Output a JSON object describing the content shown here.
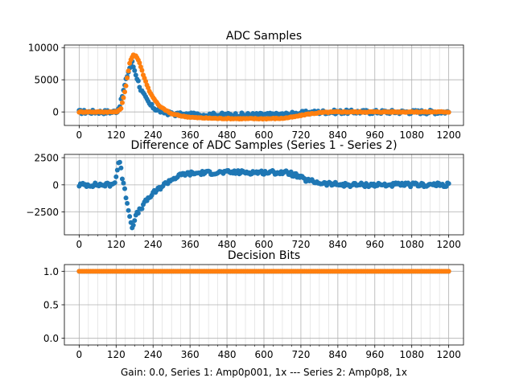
{
  "chart_data": [
    {
      "type": "scatter",
      "title": "ADC Samples",
      "xlim": [
        -48,
        1248
      ],
      "ylim": [
        -2100,
        10400
      ],
      "xticks": [
        0,
        120,
        240,
        360,
        480,
        600,
        720,
        840,
        960,
        1080,
        1200
      ],
      "yticks": [
        0,
        5000,
        10000
      ],
      "ytick_labels": [
        "0",
        "5000",
        "10000"
      ],
      "grid": true,
      "series": [
        {
          "name": "Series 1",
          "color": "#1f77b4",
          "points": [
            [
              0,
              0
            ],
            [
              50,
              0
            ],
            [
              110,
              0
            ],
            [
              125,
              200
            ],
            [
              135,
              1500
            ],
            [
              145,
              3500
            ],
            [
              155,
              5500
            ],
            [
              165,
              7000
            ],
            [
              170,
              8000
            ],
            [
              175,
              7200
            ],
            [
              180,
              6500
            ],
            [
              190,
              5000
            ],
            [
              200,
              3500
            ],
            [
              215,
              2200
            ],
            [
              230,
              1100
            ],
            [
              250,
              400
            ],
            [
              270,
              0
            ],
            [
              300,
              -300
            ],
            [
              340,
              -450
            ],
            [
              400,
              -450
            ],
            [
              480,
              -450
            ],
            [
              560,
              -450
            ],
            [
              640,
              -450
            ],
            [
              680,
              -350
            ],
            [
              720,
              -200
            ],
            [
              760,
              -80
            ],
            [
              800,
              0
            ],
            [
              840,
              0
            ],
            [
              900,
              0
            ],
            [
              960,
              0
            ],
            [
              1020,
              0
            ],
            [
              1080,
              0
            ],
            [
              1140,
              0
            ],
            [
              1200,
              0
            ]
          ]
        },
        {
          "name": "Series 2",
          "color": "#ff7f0e",
          "points": [
            [
              0,
              0
            ],
            [
              60,
              0
            ],
            [
              120,
              0
            ],
            [
              135,
              400
            ],
            [
              150,
              3500
            ],
            [
              165,
              7800
            ],
            [
              175,
              8900
            ],
            [
              185,
              8700
            ],
            [
              195,
              7800
            ],
            [
              210,
              5500
            ],
            [
              230,
              3000
            ],
            [
              260,
              900
            ],
            [
              300,
              -300
            ],
            [
              340,
              -700
            ],
            [
              380,
              -900
            ],
            [
              440,
              -1000
            ],
            [
              520,
              -1050
            ],
            [
              600,
              -1050
            ],
            [
              660,
              -1000
            ],
            [
              700,
              -750
            ],
            [
              740,
              -350
            ],
            [
              790,
              -80
            ],
            [
              840,
              0
            ],
            [
              900,
              0
            ],
            [
              1000,
              0
            ],
            [
              1100,
              0
            ],
            [
              1200,
              0
            ]
          ]
        }
      ]
    },
    {
      "type": "scatter",
      "title": "Difference of ADC Samples (Series 1 - Series 2)",
      "xlim": [
        -48,
        1248
      ],
      "ylim": [
        -4600,
        2800
      ],
      "xticks": [
        0,
        120,
        240,
        360,
        480,
        600,
        720,
        840,
        960,
        1080,
        1200
      ],
      "yticks": [
        -2500,
        0,
        2500
      ],
      "ytick_labels": [
        "−2500",
        "0",
        "2500"
      ],
      "grid": true,
      "series": [
        {
          "name": "Difference",
          "color": "#1f77b4",
          "points": [
            [
              0,
              0
            ],
            [
              60,
              0
            ],
            [
              110,
              0
            ],
            [
              118,
              500
            ],
            [
              125,
              1500
            ],
            [
              130,
              2400
            ],
            [
              135,
              1800
            ],
            [
              140,
              600
            ],
            [
              148,
              -500
            ],
            [
              155,
              -1500
            ],
            [
              162,
              -2500
            ],
            [
              168,
              -3400
            ],
            [
              172,
              -4000
            ],
            [
              178,
              -3300
            ],
            [
              185,
              -2800
            ],
            [
              195,
              -2400
            ],
            [
              205,
              -2000
            ],
            [
              220,
              -1400
            ],
            [
              240,
              -800
            ],
            [
              270,
              -100
            ],
            [
              300,
              500
            ],
            [
              340,
              1000
            ],
            [
              400,
              1100
            ],
            [
              480,
              1150
            ],
            [
              560,
              1150
            ],
            [
              640,
              1150
            ],
            [
              680,
              1100
            ],
            [
              700,
              900
            ],
            [
              740,
              400
            ],
            [
              800,
              100
            ],
            [
              860,
              0
            ],
            [
              960,
              0
            ],
            [
              1080,
              0
            ],
            [
              1200,
              0
            ]
          ]
        }
      ]
    },
    {
      "type": "scatter",
      "title": "Decision Bits",
      "xlabel": "Gain: 0.0, Series 1: Amp0p001, 1x --- Series 2: Amp0p8, 1x",
      "xlim": [
        -48,
        1248
      ],
      "ylim": [
        -0.1,
        1.1
      ],
      "xticks": [
        0,
        120,
        240,
        360,
        480,
        600,
        720,
        840,
        960,
        1080,
        1200
      ],
      "yticks": [
        0.0,
        0.5,
        1.0
      ],
      "ytick_labels": [
        "0.0",
        "0.5",
        "1.0"
      ],
      "grid": true,
      "series": [
        {
          "name": "Series 1",
          "color": "#1f77b4",
          "points": [
            [
              0,
              1
            ],
            [
              1200,
              1
            ]
          ]
        },
        {
          "name": "Series 2",
          "color": "#ff7f0e",
          "points": [
            [
              0,
              1
            ],
            [
              1200,
              1
            ]
          ]
        }
      ]
    }
  ]
}
